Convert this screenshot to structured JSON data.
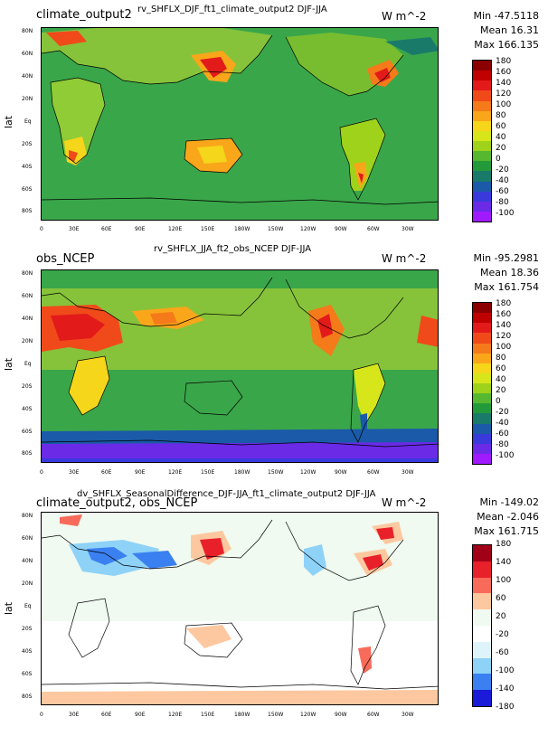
{
  "panels": [
    {
      "name": "climate_output2",
      "title": "rv_SHFLX_DJF_ft1_climate_output2  DJF-JJA",
      "units": "W m^-2",
      "stats": {
        "min": "Min -47.5118",
        "mean": "Mean 16.31",
        "max": "Max 166.135"
      },
      "ylabel": "lat",
      "colorbar": {
        "labels": [
          "180",
          "160",
          "140",
          "120",
          "100",
          "80",
          "60",
          "40",
          "20",
          "0",
          "-20",
          "-40",
          "-60",
          "-80",
          "-100"
        ],
        "colors": [
          "#8b0000",
          "#c00000",
          "#e21a1a",
          "#f04a1a",
          "#f57a1a",
          "#f9a61a",
          "#f5d61a",
          "#d6e61a",
          "#9fd21a",
          "#55b830",
          "#239a3a",
          "#1a7a6a",
          "#1a5aa8",
          "#3a3adc",
          "#6a2ae6",
          "#a01aff"
        ]
      }
    },
    {
      "name": "obs_NCEP",
      "title": "rv_SHFLX_JJA_ft2_obs_NCEP  DJF-JJA",
      "units": "W m^-2",
      "stats": {
        "min": "Min -95.2981",
        "mean": "Mean 18.36",
        "max": "Max 161.754"
      },
      "ylabel": "lat",
      "colorbar": {
        "labels": [
          "180",
          "160",
          "140",
          "120",
          "100",
          "80",
          "60",
          "40",
          "20",
          "0",
          "-20",
          "-40",
          "-60",
          "-80",
          "-100"
        ],
        "colors": [
          "#8b0000",
          "#c00000",
          "#e21a1a",
          "#f04a1a",
          "#f57a1a",
          "#f9a61a",
          "#f5d61a",
          "#d6e61a",
          "#9fd21a",
          "#55b830",
          "#239a3a",
          "#1a7a6a",
          "#1a5aa8",
          "#3a3adc",
          "#6a2ae6",
          "#a01aff"
        ]
      }
    },
    {
      "name": "climate_output2, obs_NCEP",
      "title": "dv_SHFLX_SeasonalDifference_DJF-JJA_ft1_climate_output2  DJF-JJA",
      "units": "W m^-2",
      "stats": {
        "min": "Min -149.02",
        "mean": "Mean -2.046",
        "max": "Max 161.715"
      },
      "ylabel": "lat",
      "colorbar": {
        "labels": [
          "180",
          "140",
          "100",
          "60",
          "20",
          "-20",
          "-60",
          "-100",
          "-140",
          "-180"
        ],
        "colors": [
          "#a00018",
          "#e8202a",
          "#f86a5a",
          "#fdc8a0",
          "#f0faf0",
          "#ffffff",
          "#dff4fa",
          "#8ed2f8",
          "#3a80f0",
          "#1a1ad8"
        ]
      }
    }
  ],
  "axes": {
    "lat_ticks": [
      "80N",
      "60N",
      "40N",
      "20N",
      "Eq",
      "20S",
      "40S",
      "60S",
      "80S"
    ],
    "lon_ticks": [
      "0",
      "30E",
      "60E",
      "90E",
      "120E",
      "150E",
      "180W",
      "150W",
      "120W",
      "90W",
      "60W",
      "30W"
    ]
  },
  "chart_data": [
    {
      "type": "heatmap",
      "title": "rv_SHFLX_DJF_ft1_climate_output2  DJF-JJA",
      "subtitle": "climate_output2",
      "units": "W m^-2",
      "ylabel": "lat",
      "x_ticks": [
        "0",
        "30E",
        "60E",
        "90E",
        "120E",
        "150E",
        "180W",
        "150W",
        "120W",
        "90W",
        "60W",
        "30W"
      ],
      "y_ticks": [
        "80N",
        "60N",
        "40N",
        "20N",
        "Eq",
        "20S",
        "40S",
        "60S",
        "80S"
      ],
      "min": -47.5118,
      "mean": 16.31,
      "max": 166.135,
      "colorbar_levels": [
        180,
        160,
        140,
        120,
        100,
        80,
        60,
        40,
        20,
        0,
        -20,
        -40,
        -60,
        -80,
        -100
      ]
    },
    {
      "type": "heatmap",
      "title": "rv_SHFLX_JJA_ft2_obs_NCEP  DJF-JJA",
      "subtitle": "obs_NCEP",
      "units": "W m^-2",
      "ylabel": "lat",
      "x_ticks": [
        "0",
        "30E",
        "60E",
        "90E",
        "120E",
        "150E",
        "180W",
        "150W",
        "120W",
        "90W",
        "60W",
        "30W"
      ],
      "y_ticks": [
        "80N",
        "60N",
        "40N",
        "20N",
        "Eq",
        "20S",
        "40S",
        "60S",
        "80S"
      ],
      "min": -95.2981,
      "mean": 18.36,
      "max": 161.754,
      "colorbar_levels": [
        180,
        160,
        140,
        120,
        100,
        80,
        60,
        40,
        20,
        0,
        -20,
        -40,
        -60,
        -80,
        -100
      ]
    },
    {
      "type": "heatmap",
      "title": "dv_SHFLX_SeasonalDifference_DJF-JJA_ft1_climate_output2  DJF-JJA",
      "subtitle": "climate_output2, obs_NCEP",
      "units": "W m^-2",
      "ylabel": "lat",
      "x_ticks": [
        "0",
        "30E",
        "60E",
        "90E",
        "120E",
        "150E",
        "180W",
        "150W",
        "120W",
        "90W",
        "60W",
        "30W"
      ],
      "y_ticks": [
        "80N",
        "60N",
        "40N",
        "20N",
        "Eq",
        "20S",
        "40S",
        "60S",
        "80S"
      ],
      "min": -149.02,
      "mean": -2.046,
      "max": 161.715,
      "colorbar_levels": [
        180,
        140,
        100,
        60,
        20,
        -20,
        -60,
        -100,
        -140,
        -180
      ]
    }
  ]
}
